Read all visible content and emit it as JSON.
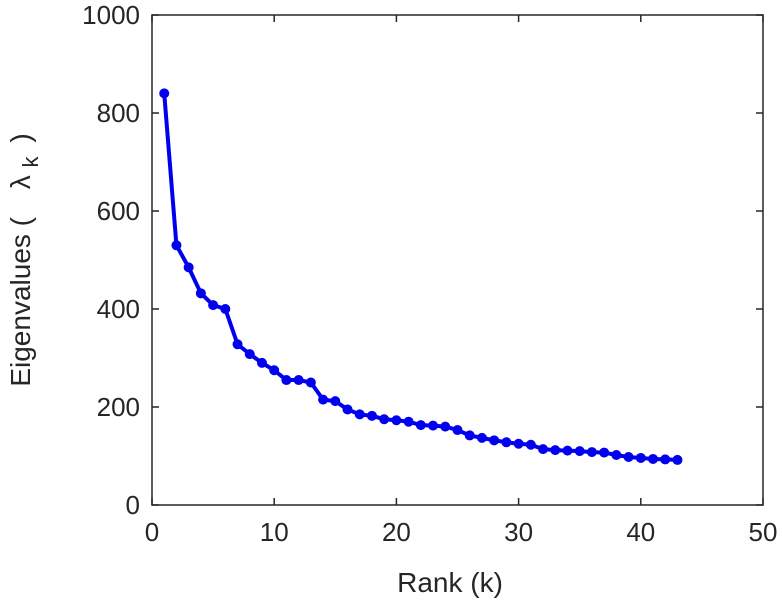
{
  "chart_data": {
    "type": "line",
    "title": "",
    "xlabel": "Rank (k)",
    "ylabel": "Eigenvalues (",
    "ylabel_symbol": "λ",
    "ylabel_subscript": "k",
    "ylabel_close": ")",
    "xlim": [
      0,
      50
    ],
    "ylim": [
      0,
      1000
    ],
    "xticks": [
      0,
      10,
      20,
      30,
      40,
      50
    ],
    "yticks": [
      0,
      200,
      400,
      600,
      800,
      1000
    ],
    "grid": false,
    "legend": false,
    "series": [
      {
        "color": "#0000ee",
        "marker": "circle",
        "x": [
          1,
          2,
          3,
          4,
          5,
          6,
          7,
          8,
          9,
          10,
          11,
          12,
          13,
          14,
          15,
          16,
          17,
          18,
          19,
          20,
          21,
          22,
          23,
          24,
          25,
          26,
          27,
          28,
          29,
          30,
          31,
          32,
          33,
          34,
          35,
          36,
          37,
          38,
          39,
          40,
          41,
          42,
          43
        ],
        "y": [
          840,
          530,
          485,
          432,
          408,
          400,
          328,
          308,
          290,
          275,
          255,
          255,
          250,
          215,
          212,
          195,
          185,
          182,
          175,
          173,
          170,
          163,
          162,
          160,
          153,
          142,
          137,
          132,
          128,
          125,
          123,
          114,
          112,
          111,
          110,
          108,
          107,
          102,
          98,
          96,
          94,
          93,
          92
        ]
      }
    ]
  }
}
